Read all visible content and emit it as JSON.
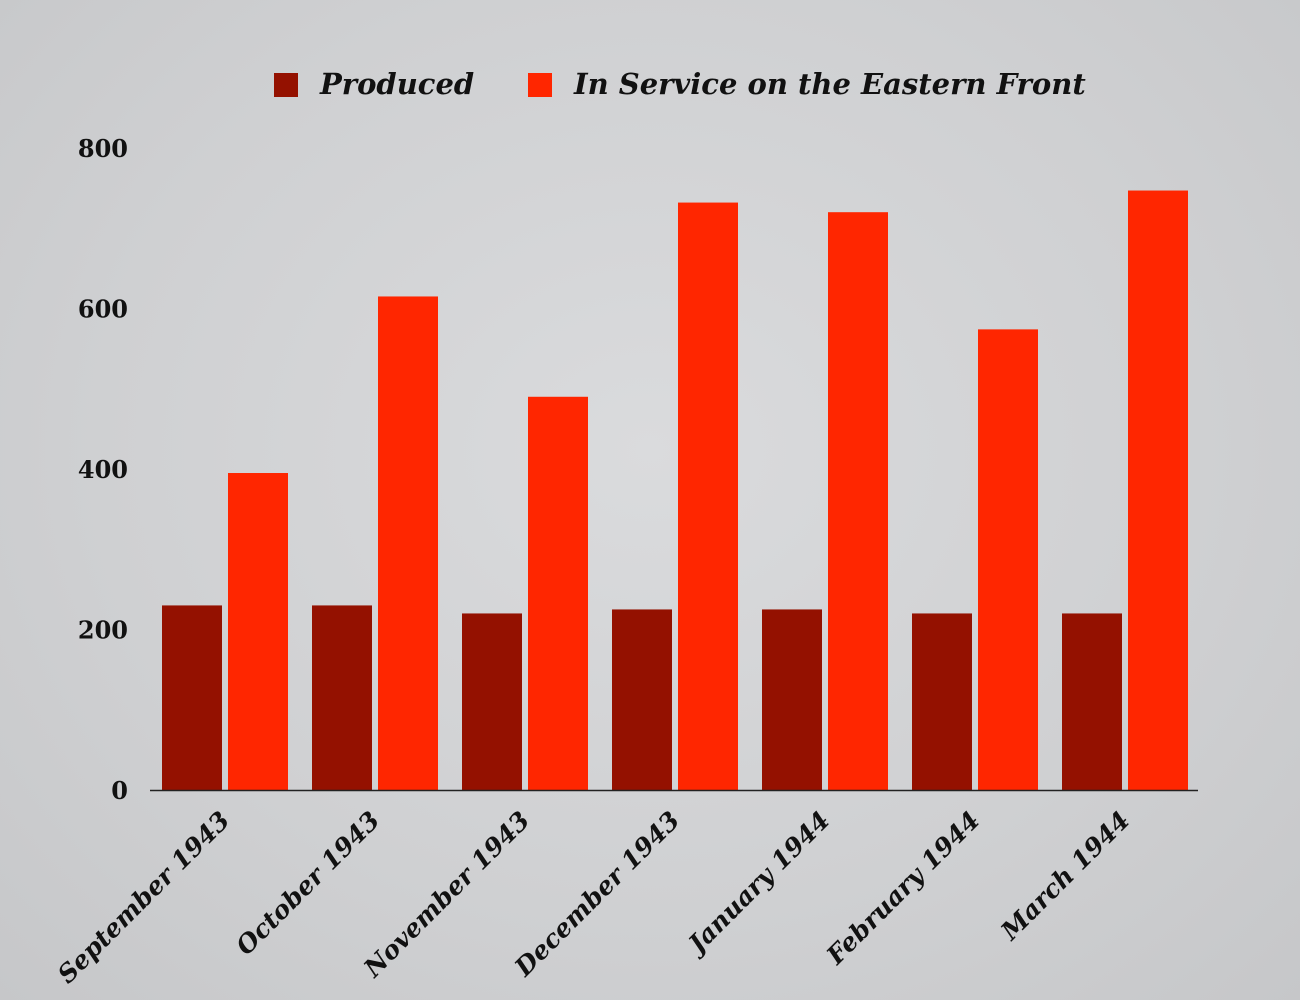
{
  "colors": {
    "produced": "#941100",
    "in_service": "#ff2600",
    "axis": "#222222"
  },
  "chart_data": {
    "type": "bar",
    "categories": [
      "September 1943",
      "October 1943",
      "November 1943",
      "December 1943",
      "January 1944",
      "February 1944",
      "March 1944"
    ],
    "series": [
      {
        "name": "Produced",
        "values": [
          230,
          230,
          220,
          225,
          225,
          220,
          220
        ]
      },
      {
        "name": "In Service on the Eastern Front",
        "values": [
          395,
          615,
          490,
          732,
          720,
          574,
          747
        ]
      }
    ],
    "yticks": [
      0,
      200,
      400,
      600,
      800
    ],
    "ylim": [
      0,
      800
    ],
    "grid": false,
    "legend_position": "top"
  }
}
